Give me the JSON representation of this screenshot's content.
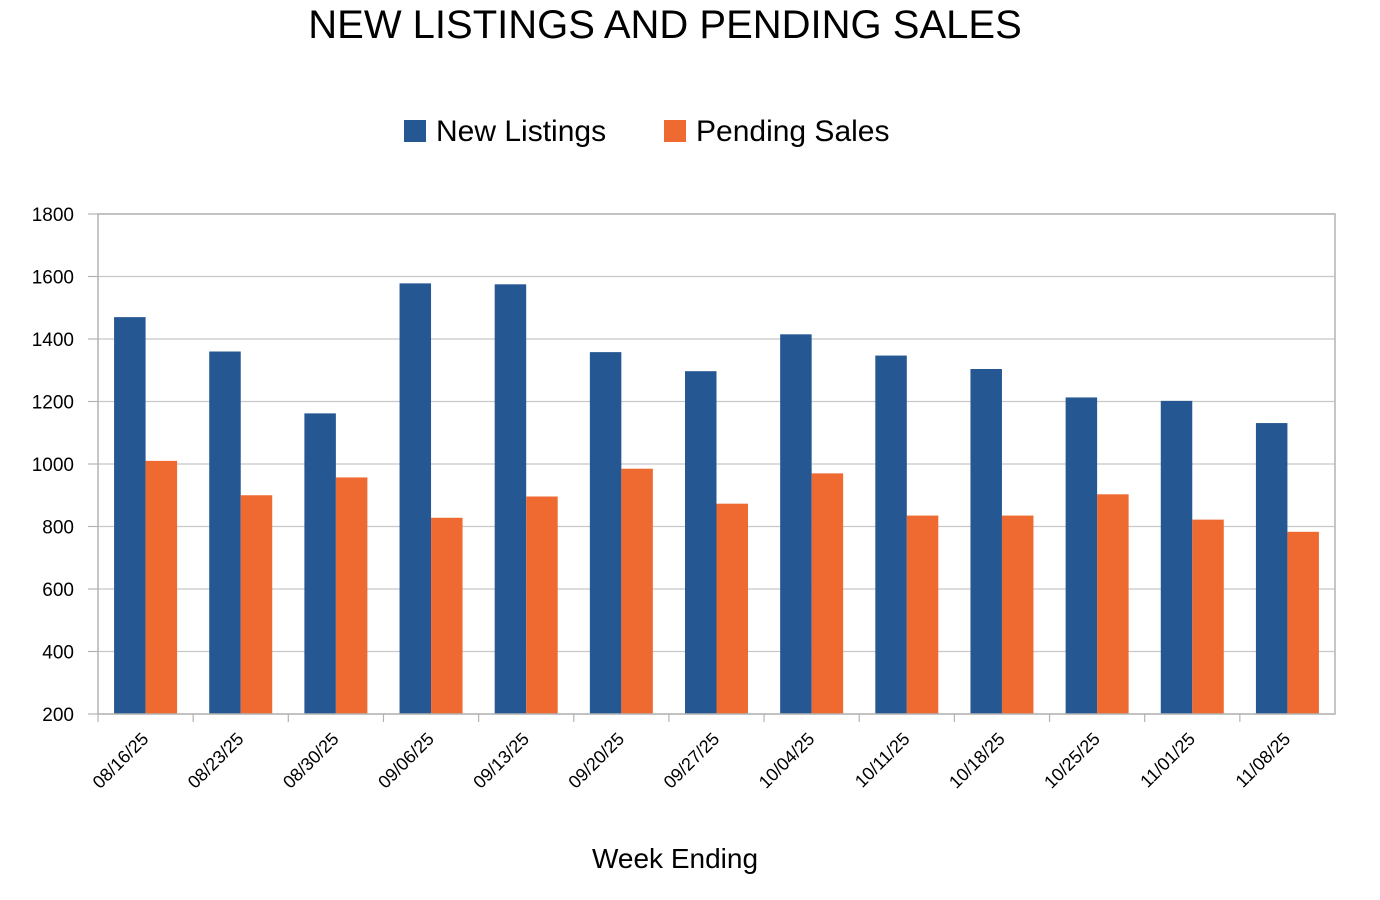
{
  "chart_data": {
    "type": "bar",
    "title": "NEW LISTINGS AND PENDING SALES",
    "xlabel": "Week Ending",
    "ylabel": "",
    "ylim": [
      200,
      1800
    ],
    "yticks": [
      200,
      400,
      600,
      800,
      1000,
      1200,
      1400,
      1600,
      1800
    ],
    "grid": true,
    "legend_position": "top",
    "categories": [
      "08/16/25",
      "08/23/25",
      "08/30/25",
      "09/06/25",
      "09/13/25",
      "09/20/25",
      "09/27/25",
      "10/04/25",
      "10/11/25",
      "10/18/25",
      "10/25/25",
      "11/01/25",
      "11/08/25"
    ],
    "series": [
      {
        "name": "New Listings",
        "color": "#255892",
        "values": [
          1470,
          1360,
          1162,
          1578,
          1575,
          1358,
          1297,
          1415,
          1347,
          1304,
          1213,
          1202,
          1131
        ]
      },
      {
        "name": "Pending Sales",
        "color": "#ee6a30",
        "values": [
          1010,
          900,
          957,
          828,
          896,
          985,
          873,
          970,
          835,
          835,
          903,
          822,
          783
        ]
      }
    ]
  }
}
